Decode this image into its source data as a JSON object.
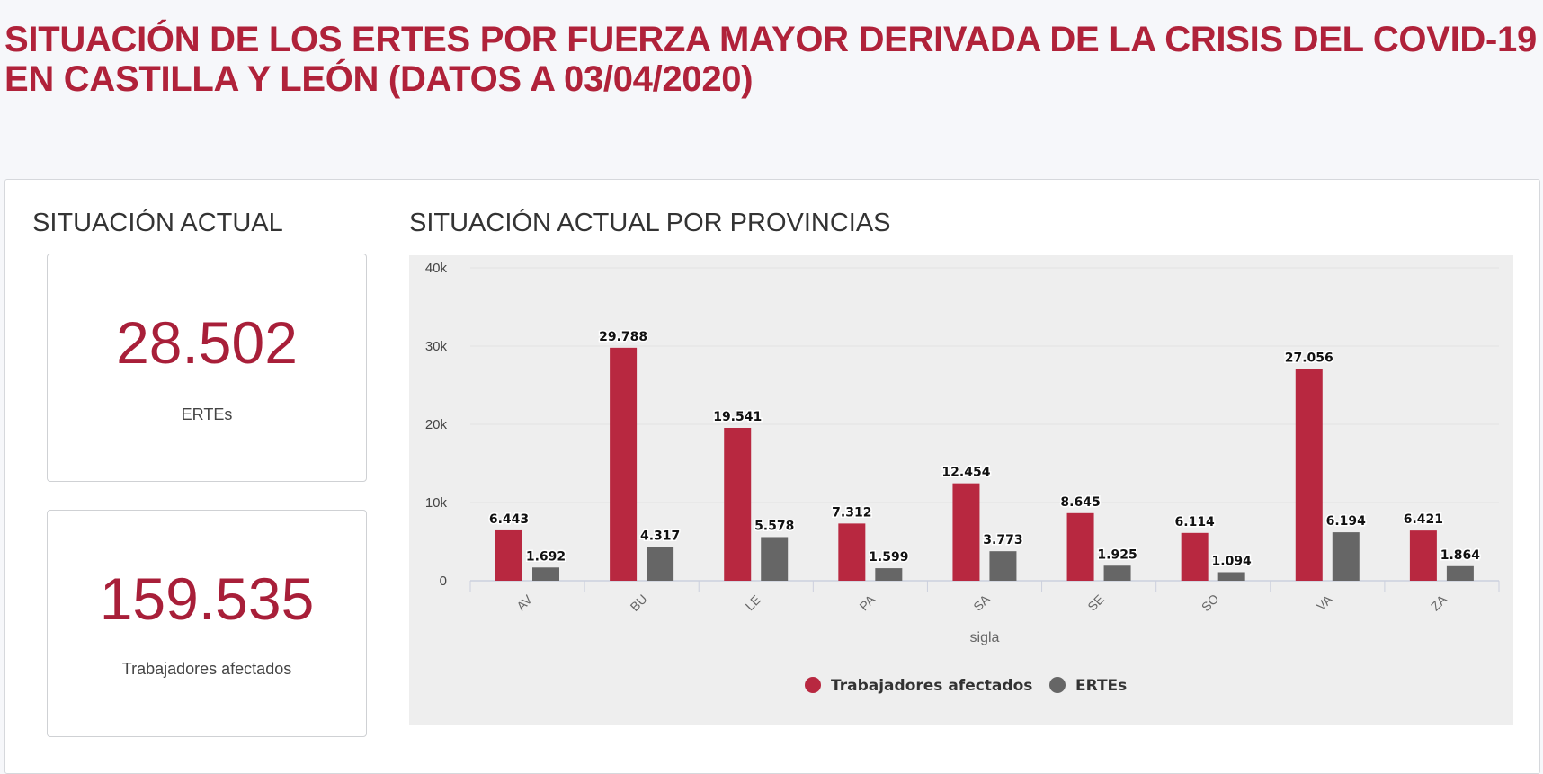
{
  "header": {
    "title_line1": "SITUACIÓN DE LOS ERTES POR FUERZA MAYOR DERIVADA DE LA CRISIS DEL COVID-19",
    "title_line2": "EN CASTILLA Y LEÓN (DATOS A 03/04/2020)"
  },
  "summary": {
    "heading": "SITUACIÓN ACTUAL",
    "ertes_value": "28.502",
    "ertes_label": "ERTEs",
    "workers_value": "159.535",
    "workers_label": "Trabajadores afectados"
  },
  "chart_heading": "SITUACIÓN ACTUAL POR PROVINCIAS",
  "colors": {
    "accent": "#b0223a",
    "series1": "#b82840",
    "series2": "#666666",
    "plot_bg": "#eeeeee"
  },
  "chart_data": {
    "type": "bar",
    "xlabel": "sigla",
    "ylabel": "",
    "ylim": [
      0,
      40000
    ],
    "yticks": [
      {
        "v": 0,
        "label": "0"
      },
      {
        "v": 10000,
        "label": "10k"
      },
      {
        "v": 20000,
        "label": "20k"
      },
      {
        "v": 30000,
        "label": "30k"
      },
      {
        "v": 40000,
        "label": "40k"
      }
    ],
    "grid": true,
    "legend": "bottom",
    "categories": [
      "AV",
      "BU",
      "LE",
      "PA",
      "SA",
      "SE",
      "SO",
      "VA",
      "ZA"
    ],
    "series": [
      {
        "name": "Trabajadores afectados",
        "values": [
          6443,
          29788,
          19541,
          7312,
          12454,
          8645,
          6114,
          27056,
          6421
        ],
        "labels": [
          "6.443",
          "29.788",
          "19.541",
          "7.312",
          "12.454",
          "8.645",
          "6.114",
          "27.056",
          "6.421"
        ]
      },
      {
        "name": "ERTEs",
        "values": [
          1692,
          4317,
          5578,
          1599,
          3773,
          1925,
          1094,
          6194,
          1864
        ],
        "labels": [
          "1.692",
          "4.317",
          "5.578",
          "1.599",
          "3.773",
          "1.925",
          "1.094",
          "6.194",
          "1.864"
        ]
      }
    ]
  }
}
